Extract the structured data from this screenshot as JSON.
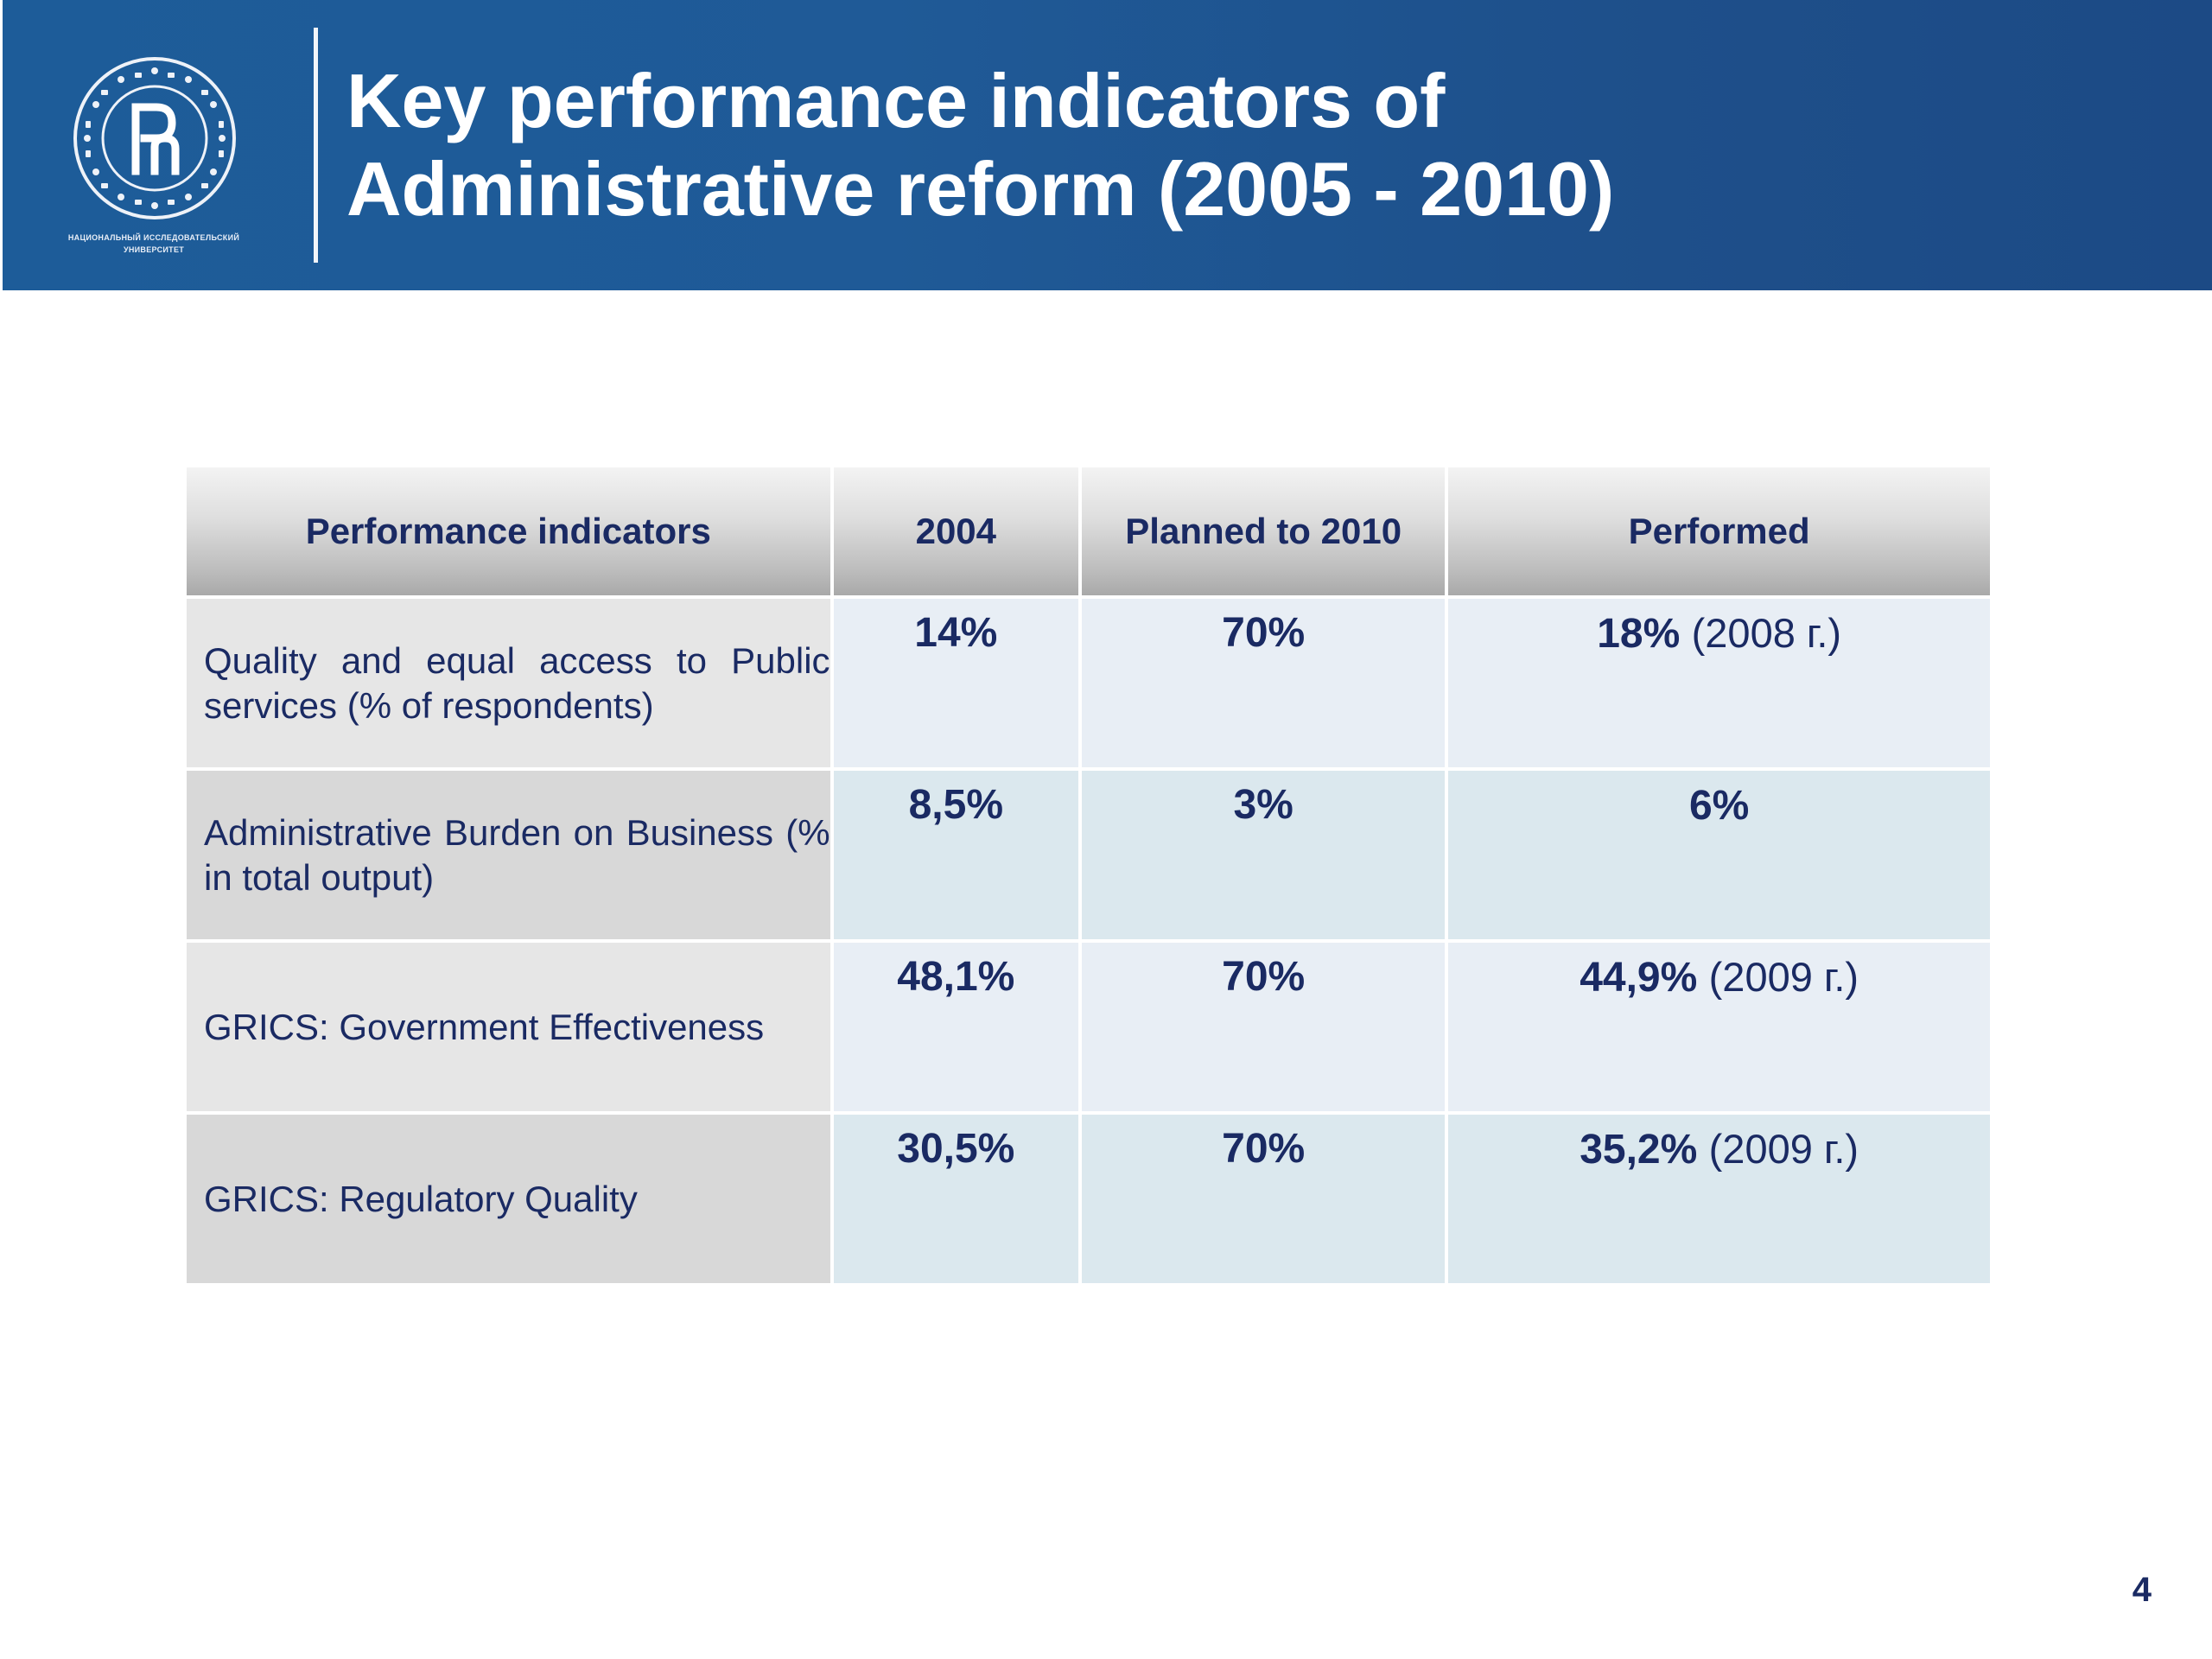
{
  "header": {
    "title_line1": "Key performance indicators of",
    "title_line2": "Administrative reform (2005 - 2010)",
    "logo": {
      "icon": "hse-university-seal-icon",
      "caption_line1": "НАЦИОНАЛЬНЫЙ ИССЛЕДОВАТЕЛЬСКИЙ",
      "caption_line2": "УНИВЕРСИТЕТ"
    }
  },
  "table": {
    "headers": [
      "Performance indicators",
      "2004",
      "Planned to 2010",
      "Performed"
    ],
    "rows": [
      {
        "indicator": "Quality and equal access to Public services (% of respondents)",
        "y2004": "14%",
        "planned": "70%",
        "performed": "18%",
        "performed_note": "(2008 г.)"
      },
      {
        "indicator": "Administrative Burden on Business (% in total output)",
        "y2004": "8,5%",
        "planned": "3%",
        "performed": "6%",
        "performed_note": ""
      },
      {
        "indicator": "GRICS: Government Effectiveness",
        "y2004": "48,1%",
        "planned": "70%",
        "performed": "44,9%",
        "performed_note": "(2009 г.)"
      },
      {
        "indicator": "GRICS: Regulatory Quality",
        "y2004": "30,5%",
        "planned": "70%",
        "performed": "35,2%",
        "performed_note": "(2009 г.)"
      }
    ]
  },
  "page_number": "4",
  "colors": {
    "header_blue": "#1d5c99",
    "text_navy": "#1a2a63"
  }
}
